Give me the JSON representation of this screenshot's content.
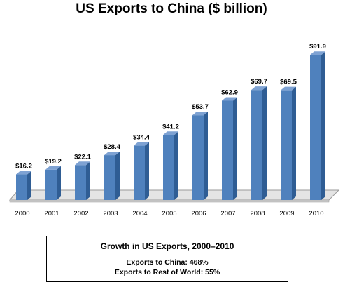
{
  "chart_data": {
    "type": "bar",
    "title": "US Exports to China ($ billion)",
    "xlabel": "",
    "ylabel": "",
    "categories": [
      "2000",
      "2001",
      "2002",
      "2003",
      "2004",
      "2005",
      "2006",
      "2007",
      "2008",
      "2009",
      "2010"
    ],
    "values": [
      16.2,
      19.2,
      22.1,
      28.4,
      34.4,
      41.2,
      53.7,
      62.9,
      69.7,
      69.5,
      91.9
    ],
    "value_labels": [
      "$16.2",
      "$19.2",
      "$22.1",
      "$28.4",
      "$34.4",
      "$41.2",
      "$53.7",
      "$62.9",
      "$69.7",
      "$69.5",
      "$91.9"
    ],
    "ylim": [
      0,
      100
    ],
    "grid": false,
    "legend": "none",
    "bar_color": "#4f81bd"
  },
  "growth_box": {
    "title": "Growth in US Exports, 2000–2010",
    "lines": [
      "Exports to China: 468%",
      "Exports to Rest of World: 55%"
    ]
  }
}
